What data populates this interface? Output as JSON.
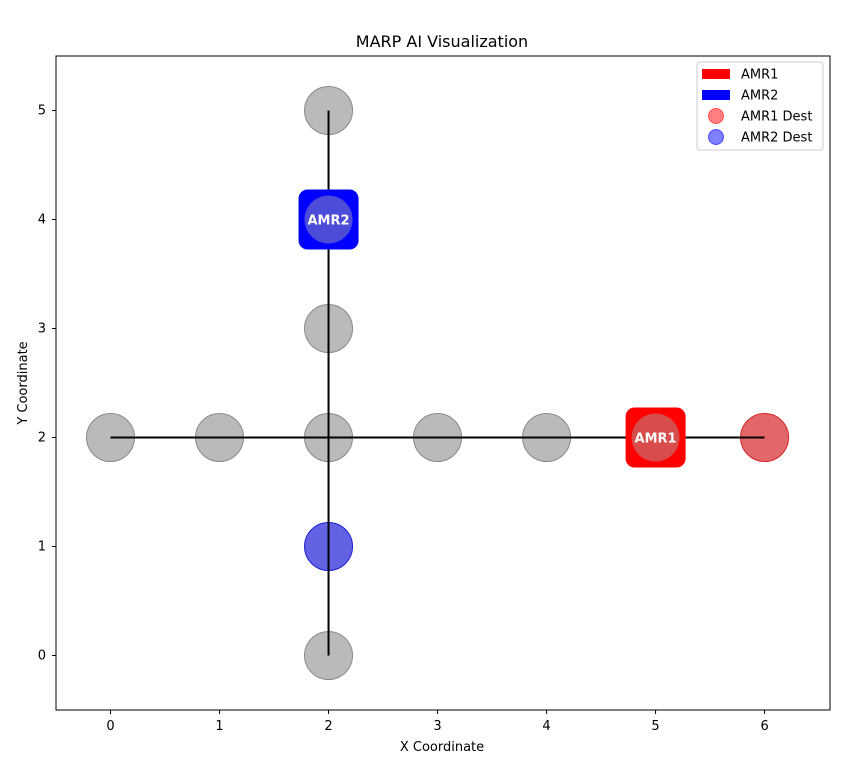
{
  "chart_data": {
    "type": "scatter",
    "title": "MARP AI Visualization",
    "xlabel": "X Coordinate",
    "ylabel": "Y Coordinate",
    "xlim": [
      -0.5,
      6.6
    ],
    "ylim": [
      -0.5,
      5.5
    ],
    "xticks": [
      0,
      1,
      2,
      3,
      4,
      5,
      6
    ],
    "yticks": [
      0,
      1,
      2,
      3,
      4,
      5
    ],
    "legend_position": "top-right",
    "grid": false,
    "edges": [
      {
        "from": [
          0,
          2
        ],
        "to": [
          6,
          2
        ]
      },
      {
        "from": [
          2,
          0
        ],
        "to": [
          2,
          5
        ]
      }
    ],
    "nodes": [
      {
        "x": 0,
        "y": 2
      },
      {
        "x": 1,
        "y": 2
      },
      {
        "x": 2,
        "y": 2
      },
      {
        "x": 3,
        "y": 2
      },
      {
        "x": 4,
        "y": 2
      },
      {
        "x": 5,
        "y": 2
      },
      {
        "x": 2,
        "y": 0
      },
      {
        "x": 2,
        "y": 3
      },
      {
        "x": 2,
        "y": 4
      },
      {
        "x": 2,
        "y": 5
      }
    ],
    "robots": [
      {
        "name": "AMR1",
        "x": 5,
        "y": 2,
        "color": "#ff0000"
      },
      {
        "name": "AMR2",
        "x": 2,
        "y": 4,
        "color": "#0000ff"
      }
    ],
    "destinations": [
      {
        "name": "AMR1 Dest",
        "x": 6,
        "y": 2,
        "color": "#d62728"
      },
      {
        "name": "AMR2 Dest",
        "x": 2,
        "y": 1,
        "color": "#1f1fd6"
      }
    ],
    "legend": [
      {
        "label": "AMR1",
        "kind": "rect",
        "color": "#ff0000"
      },
      {
        "label": "AMR2",
        "kind": "rect",
        "color": "#0000ff"
      },
      {
        "label": "AMR1 Dest",
        "kind": "circle",
        "color": "#ff0000"
      },
      {
        "label": "AMR2 Dest",
        "kind": "circle",
        "color": "#0000ff"
      }
    ],
    "node_color": "#a9a9a9",
    "edge_color": "#000000"
  }
}
